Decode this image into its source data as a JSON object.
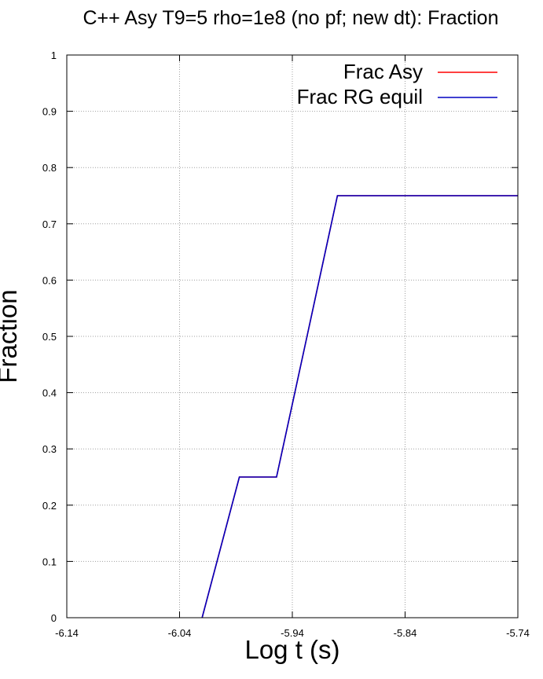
{
  "chart_data": {
    "type": "line",
    "title": "C++ Asy T9=5 rho=1e8 (no pf; new dt): Fraction",
    "xlabel": "Log t (s)",
    "ylabel": "Fraction",
    "xlim": [
      -6.14,
      -5.74
    ],
    "ylim": [
      0,
      1
    ],
    "x_ticks": [
      -6.14,
      -6.04,
      -5.94,
      -5.84,
      -5.74
    ],
    "x_tick_labels": [
      "-6.14",
      "-6.04",
      "-5.94",
      "-5.84",
      "-5.74"
    ],
    "y_ticks": [
      0,
      0.1,
      0.2,
      0.3,
      0.4,
      0.5,
      0.6,
      0.7,
      0.8,
      0.9,
      1
    ],
    "y_tick_labels": [
      "0",
      "0.1",
      "0.2",
      "0.3",
      "0.4",
      "0.5",
      "0.6",
      "0.7",
      "0.8",
      "0.9",
      "1"
    ],
    "grid": true,
    "legend_position": "top-right",
    "series": [
      {
        "name": "Frac Asy",
        "color": "#ff0000",
        "x": [
          -6.02,
          -5.987,
          -5.954,
          -5.927,
          -5.9,
          -5.74
        ],
        "y": [
          0,
          0.25,
          0.25,
          0.5,
          0.75,
          0.75
        ]
      },
      {
        "name": "Frac RG equil",
        "color": "#0000c0",
        "x": [
          -6.02,
          -5.987,
          -5.954,
          -5.927,
          -5.9,
          -5.74
        ],
        "y": [
          0,
          0.25,
          0.25,
          0.5,
          0.75,
          0.75
        ]
      }
    ]
  }
}
